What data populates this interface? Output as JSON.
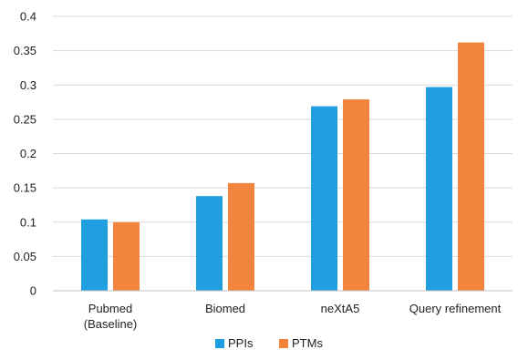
{
  "chart_data": {
    "type": "bar",
    "categories": [
      [
        "Pubmed",
        "(Baseline)"
      ],
      [
        "Biomed"
      ],
      [
        "neXtA5"
      ],
      [
        "Query refinement"
      ]
    ],
    "series": [
      {
        "name": "PPIs",
        "values": [
          0.104,
          0.138,
          0.269,
          0.297
        ],
        "color": "#1f9fe0"
      },
      {
        "name": "PTMs",
        "values": [
          0.1,
          0.157,
          0.279,
          0.362
        ],
        "color": "#f3843e"
      }
    ],
    "ylim": [
      0,
      0.4
    ],
    "yticks": [
      "0",
      "0.05",
      "0.1",
      "0.15",
      "0.2",
      "0.25",
      "0.3",
      "0.35",
      "0.4"
    ],
    "ytick_values": [
      0,
      0.05,
      0.1,
      0.15,
      0.2,
      0.25,
      0.3,
      0.35,
      0.4
    ],
    "grid": true,
    "legend_position": "bottom-center",
    "title": "",
    "xlabel": "",
    "ylabel": ""
  }
}
